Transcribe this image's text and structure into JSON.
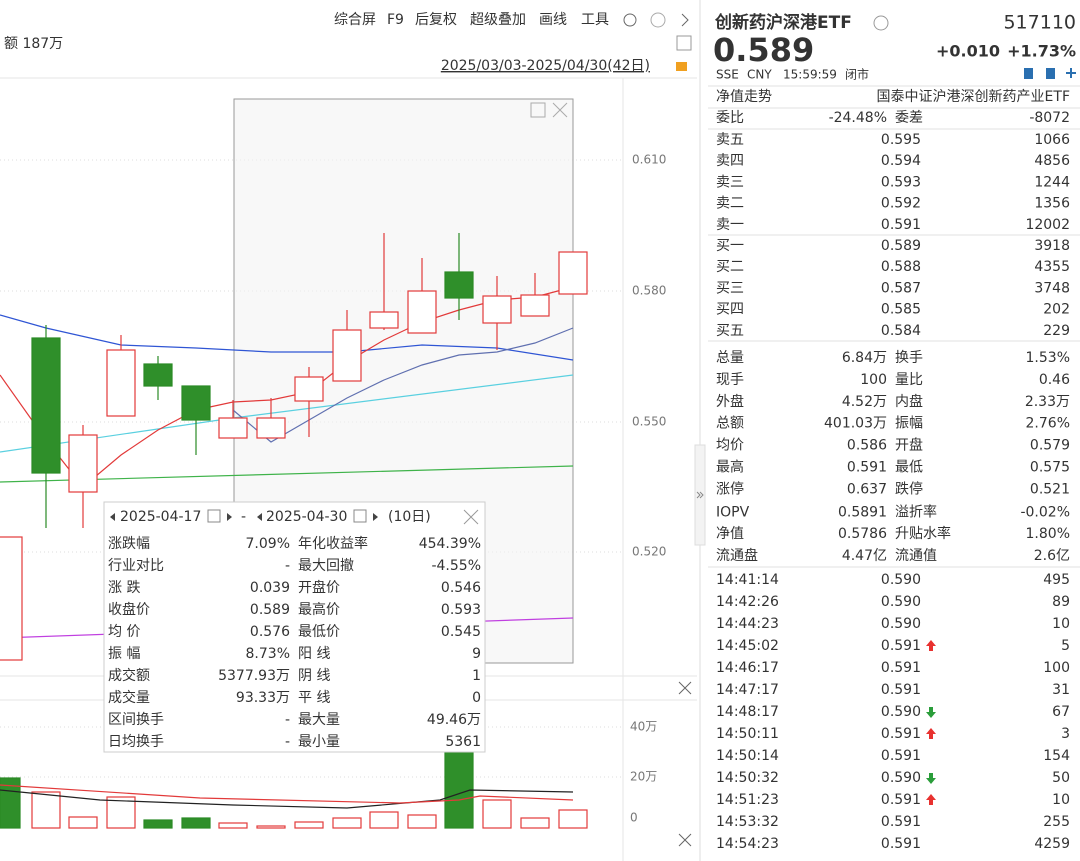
{
  "toolbar": {
    "items": [
      "综合屏",
      "F9",
      "后复权",
      "超级叠加",
      "画线",
      "工具"
    ],
    "left_label": "额 187万",
    "date_range": "2025/03/03-2025/04/30(42日)"
  },
  "price_axis": {
    "ticks": [
      "0.610",
      "0.580",
      "0.550",
      "0.520"
    ]
  },
  "volume_axis": {
    "ticks": [
      "40万",
      "20万",
      "0"
    ]
  },
  "popup": {
    "start": "2025-04-17",
    "separator": "-",
    "end": "2025-04-30",
    "days": "(10日)",
    "rows": [
      {
        "cells": [
          "涨跌幅",
          "7.09%",
          "年化收益率",
          "454.39%"
        ],
        "colors": [
          "#e8312f",
          "#e8312f"
        ]
      },
      {
        "cells": [
          "行业对比",
          "-",
          "最大回撤",
          "-4.55%"
        ],
        "colors": [
          "#333333",
          "#2a9d3a"
        ]
      },
      {
        "cells": [
          "涨 跌",
          "0.039",
          "开盘价",
          "0.546"
        ],
        "colors": [
          "#e8312f",
          "#e8312f"
        ]
      },
      {
        "cells": [
          "收盘价",
          "0.589",
          "最高价",
          "0.593"
        ],
        "colors": [
          "#e8312f",
          "#e8312f"
        ]
      },
      {
        "cells": [
          "均 价",
          "0.576",
          "最低价",
          "0.545"
        ],
        "colors": [
          "#e8312f",
          "#e8312f"
        ]
      },
      {
        "cells": [
          "振 幅",
          "8.73%",
          "阳 线",
          "9"
        ],
        "colors": [
          "#e8312f",
          "#e8312f"
        ]
      },
      {
        "cells": [
          "成交额",
          "5377.93万",
          "阴 线",
          "1"
        ],
        "colors": [
          "#333333",
          "#2a9d3a"
        ]
      },
      {
        "cells": [
          "成交量",
          "93.33万",
          "平 线",
          "0"
        ],
        "colors": [
          "#333333",
          "#333333"
        ]
      },
      {
        "cells": [
          "区间换手",
          "-",
          "最大量",
          "49.46万"
        ],
        "colors": [
          "#333333",
          "#333333"
        ]
      },
      {
        "cells": [
          "日均换手",
          "-",
          "最小量",
          "5361"
        ],
        "colors": [
          "#333333",
          "#333333"
        ]
      }
    ]
  },
  "quote": {
    "name": "创新药沪深港ETF",
    "code": "517110",
    "price": "0.589",
    "change": "+0.010",
    "change_pct": "+1.73%",
    "exchange": "SSE",
    "currency": "CNY",
    "time": "15:59:59",
    "status": "闭市"
  },
  "nav": {
    "label": "净值走势",
    "index": "国泰中证沪港深创新药产业ETF"
  },
  "order_ratio": {
    "cells": [
      "委比",
      "-24.48%",
      "委差",
      "-8072"
    ],
    "colors": [
      "#2a9d3a",
      "#2a9d3a"
    ]
  },
  "asks": [
    {
      "label": "卖五",
      "price": "0.595",
      "volume": "1066"
    },
    {
      "label": "卖四",
      "price": "0.594",
      "volume": "4856"
    },
    {
      "label": "卖三",
      "price": "0.593",
      "volume": "1244"
    },
    {
      "label": "卖二",
      "price": "0.592",
      "volume": "1356"
    },
    {
      "label": "卖一",
      "price": "0.591",
      "volume": "12002"
    }
  ],
  "bids": [
    {
      "label": "买一",
      "price": "0.589",
      "volume": "3918"
    },
    {
      "label": "买二",
      "price": "0.588",
      "volume": "4355"
    },
    {
      "label": "买三",
      "price": "0.587",
      "volume": "3748"
    },
    {
      "label": "买四",
      "price": "0.585",
      "volume": "202"
    },
    {
      "label": "买五",
      "price": "0.584",
      "volume": "229"
    }
  ],
  "stats": [
    {
      "cells": [
        "总量",
        "6.84万",
        "换手",
        "1.53%"
      ],
      "colors": [
        "#333333",
        "#333333"
      ]
    },
    {
      "cells": [
        "现手",
        "100",
        "量比",
        "0.46"
      ],
      "colors": [
        "#333333",
        "#333333"
      ]
    },
    {
      "cells": [
        "外盘",
        "4.52万",
        "内盘",
        "2.33万"
      ],
      "colors": [
        "#e8312f",
        "#2a9d3a"
      ]
    },
    {
      "cells": [
        "总额",
        "401.03万",
        "振幅",
        "2.76%"
      ],
      "colors": [
        "#333333",
        "#333333"
      ]
    },
    {
      "cells": [
        "均价",
        "0.586",
        "开盘",
        "0.579"
      ],
      "colors": [
        "#e8312f",
        "#2a9d3a"
      ]
    },
    {
      "cells": [
        "最高",
        "0.591",
        "最低",
        "0.575"
      ],
      "colors": [
        "#e8312f",
        "#2a9d3a"
      ]
    },
    {
      "cells": [
        "涨停",
        "0.637",
        "跌停",
        "0.521"
      ],
      "colors": [
        "#e8312f",
        "#2a9d3a"
      ]
    },
    {
      "cells": [
        "IOPV",
        "0.5891",
        "溢折率",
        "-0.02%"
      ],
      "colors": [
        "#333333",
        "#2a9d3a"
      ]
    },
    {
      "cells": [
        "净值",
        "0.5786",
        "升贴水率",
        "1.80%"
      ],
      "colors": [
        "#e8312f",
        "#e8312f"
      ]
    },
    {
      "cells": [
        "流通盘",
        "4.47亿",
        "流通值",
        "2.6亿"
      ],
      "colors": [
        "#333333",
        "#333333"
      ]
    }
  ],
  "trades": [
    {
      "time": "14:41:14",
      "price": "0.590",
      "volume": "495",
      "volume_color": "#2a9d3a"
    },
    {
      "time": "14:42:26",
      "price": "0.590",
      "volume": "89",
      "volume_color": "#2a9d3a"
    },
    {
      "time": "14:44:23",
      "price": "0.590",
      "volume": "10",
      "volume_color": "#2a9d3a"
    },
    {
      "time": "14:45:02",
      "price": "0.591",
      "volume": "5",
      "volume_color": "#e8312f",
      "arrow": "up"
    },
    {
      "time": "14:46:17",
      "price": "0.591",
      "volume": "100",
      "volume_color": "#e8312f"
    },
    {
      "time": "14:47:17",
      "price": "0.591",
      "volume": "31",
      "volume_color": "#e8312f"
    },
    {
      "time": "14:48:17",
      "price": "0.590",
      "volume": "67",
      "volume_color": "#2a9d3a",
      "arrow": "down"
    },
    {
      "time": "14:50:11",
      "price": "0.591",
      "volume": "3",
      "volume_color": "#e8312f",
      "arrow": "up"
    },
    {
      "time": "14:50:14",
      "price": "0.591",
      "volume": "154",
      "volume_color": "#e8312f"
    },
    {
      "time": "14:50:32",
      "price": "0.590",
      "volume": "50",
      "volume_color": "#2a9d3a",
      "arrow": "down"
    },
    {
      "time": "14:51:23",
      "price": "0.591",
      "volume": "10",
      "volume_color": "#e8312f",
      "arrow": "up"
    },
    {
      "time": "14:53:32",
      "price": "0.591",
      "volume": "255",
      "volume_color": "#e8312f"
    },
    {
      "time": "14:54:23",
      "price": "0.591",
      "volume": "4259",
      "volume_color": "#e8312f"
    }
  ]
}
